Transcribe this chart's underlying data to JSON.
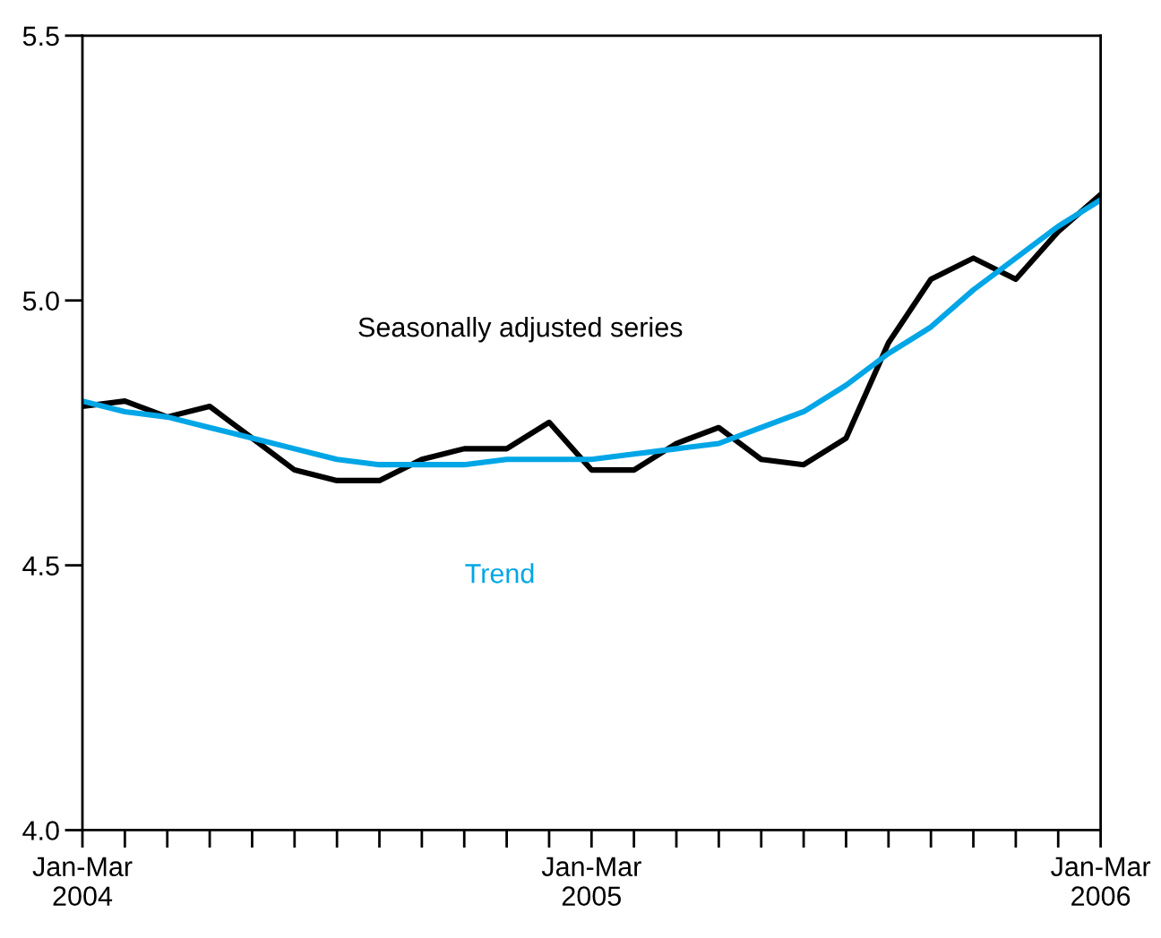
{
  "chart_data": {
    "type": "line",
    "categories": [
      "Jan-Mar\n2004",
      null,
      null,
      null,
      null,
      null,
      null,
      null,
      null,
      null,
      null,
      null,
      "Jan-Mar\n2005",
      null,
      null,
      null,
      null,
      null,
      null,
      null,
      null,
      null,
      null,
      null,
      "Jan-Mar\n2006"
    ],
    "ylim": [
      4.0,
      5.5
    ],
    "yticks": [
      {
        "value": 4.0,
        "label": "4.0"
      },
      {
        "value": 4.5,
        "label": "4.5"
      },
      {
        "value": 5.0,
        "label": "5.0"
      },
      {
        "value": 5.5,
        "label": "5.5"
      }
    ],
    "grid": false,
    "legend": false,
    "marker": "none",
    "line_style": "solid",
    "series": [
      {
        "name": "Seasonally adjusted series",
        "color": "#000000",
        "values": [
          4.8,
          4.81,
          4.78,
          4.8,
          4.74,
          4.68,
          4.66,
          4.66,
          4.7,
          4.72,
          4.72,
          4.77,
          4.68,
          4.68,
          4.73,
          4.76,
          4.7,
          4.69,
          4.74,
          4.92,
          5.04,
          5.08,
          5.04,
          5.13,
          5.2
        ]
      },
      {
        "name": "Trend",
        "color": "#00a6e6",
        "values": [
          4.81,
          4.79,
          4.78,
          4.76,
          4.74,
          4.72,
          4.7,
          4.69,
          4.69,
          4.69,
          4.7,
          4.7,
          4.7,
          4.71,
          4.72,
          4.73,
          4.76,
          4.79,
          4.84,
          4.9,
          4.95,
          5.02,
          5.08,
          5.14,
          5.19
        ]
      }
    ]
  }
}
